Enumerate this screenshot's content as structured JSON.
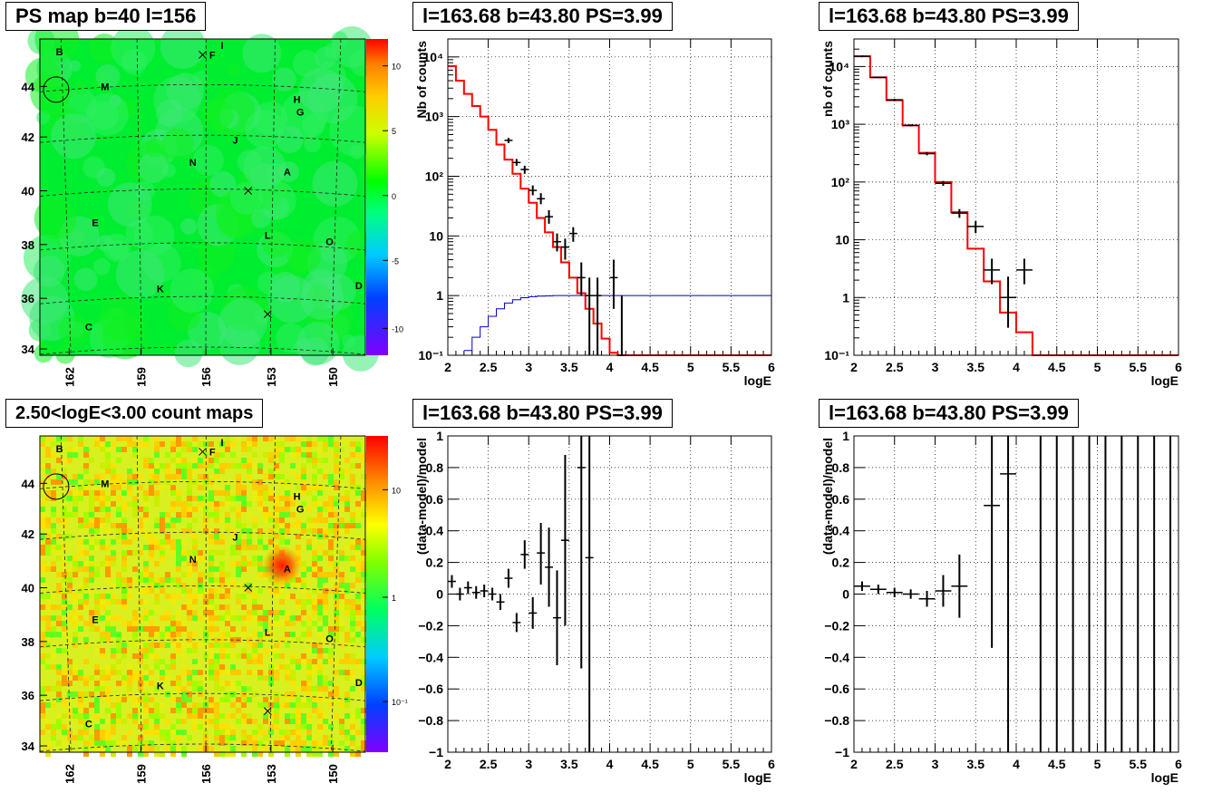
{
  "panels": {
    "map_top": {
      "title": "PS map b=40 l=156"
    },
    "map_bottom": {
      "title": "2.50<logE<3.00 count maps"
    },
    "spec_left": {
      "title": "l=163.68 b=43.80 PS=3.99"
    },
    "spec_right": {
      "title": "l=163.68 b=43.80 PS=3.99"
    },
    "res_left": {
      "title": "l=163.68 b=43.80 PS=3.99"
    },
    "res_right": {
      "title": "l=163.68 b=43.80 PS=3.99"
    }
  },
  "maps": {
    "x_ticks": [
      "162",
      "159",
      "156",
      "153",
      "150"
    ],
    "y_ticks": [
      "44",
      "42",
      "40",
      "38",
      "36",
      "34"
    ],
    "source_labels": [
      {
        "t": "B",
        "x": 0.06,
        "y": 0.04
      },
      {
        "t": "I",
        "x": 0.56,
        "y": 0.02
      },
      {
        "t": "F",
        "x": 0.53,
        "y": 0.05
      },
      {
        "t": "M",
        "x": 0.2,
        "y": 0.15
      },
      {
        "t": "H",
        "x": 0.79,
        "y": 0.19
      },
      {
        "t": "G",
        "x": 0.8,
        "y": 0.23
      },
      {
        "t": "J",
        "x": 0.6,
        "y": 0.32
      },
      {
        "t": "N",
        "x": 0.47,
        "y": 0.39
      },
      {
        "t": "A",
        "x": 0.76,
        "y": 0.42
      },
      {
        "t": "E",
        "x": 0.17,
        "y": 0.58
      },
      {
        "t": "L",
        "x": 0.7,
        "y": 0.62
      },
      {
        "t": "O",
        "x": 0.89,
        "y": 0.64
      },
      {
        "t": "K",
        "x": 0.37,
        "y": 0.79
      },
      {
        "t": "D",
        "x": 0.98,
        "y": 0.78
      },
      {
        "t": "C",
        "x": 0.15,
        "y": 0.91
      }
    ],
    "crosses": [
      {
        "x": 0.5,
        "y": 0.05
      },
      {
        "x": 0.64,
        "y": 0.48
      },
      {
        "x": 0.7,
        "y": 0.87
      }
    ],
    "circle": {
      "x": 0.05,
      "y": 0.16
    },
    "top_palette_ticks": [
      "10",
      "5",
      "0",
      "-5",
      "-10"
    ],
    "bottom_palette_ticks": [
      "10",
      "1",
      "10⁻¹"
    ]
  },
  "chart_data": [
    {
      "type": "line",
      "panel": "spec_left",
      "title": "l=163.68 b=43.80 PS=3.99",
      "xlabel": "logE",
      "ylabel": "Nb of counts",
      "xlim": [
        2,
        6
      ],
      "ylim": [
        0.1,
        20000
      ],
      "yscale": "log",
      "grid": true,
      "x_ticks": [
        "2",
        "2.5",
        "3",
        "3.5",
        "4",
        "4.5",
        "5",
        "5.5",
        "6"
      ],
      "y_ticks": [
        "10⁻¹",
        "1",
        "10",
        "10²",
        "10³",
        "10⁴"
      ],
      "model_step": {
        "color": "#ff0000",
        "edges": [
          2,
          2.1,
          2.2,
          2.3,
          2.4,
          2.5,
          2.6,
          2.7,
          2.8,
          2.9,
          3.0,
          3.1,
          3.2,
          3.3,
          3.4,
          3.5,
          3.6,
          3.7,
          3.8,
          3.9,
          4.0,
          4.1,
          6.0
        ],
        "values": [
          7000,
          4000,
          2400,
          1500,
          1000,
          600,
          340,
          190,
          110,
          62,
          36,
          20,
          11.5,
          6.5,
          3.6,
          2.0,
          1.1,
          0.6,
          0.34,
          0.19,
          0.11,
          0.1
        ]
      },
      "efficiency": {
        "color": "#0000cc",
        "edges": [
          2.2,
          2.3,
          2.4,
          2.5,
          2.6,
          2.7,
          2.8,
          2.9,
          3.0,
          3.1,
          3.2,
          3.3,
          3.4,
          3.5,
          3.6,
          3.7,
          6.0
        ],
        "values": [
          0.12,
          0.2,
          0.3,
          0.45,
          0.6,
          0.75,
          0.85,
          0.92,
          0.96,
          0.98,
          0.99,
          1,
          1,
          1,
          1,
          1
        ]
      },
      "points": [
        {
          "x": 2.75,
          "y": 400,
          "lo": 360,
          "hi": 440
        },
        {
          "x": 2.85,
          "y": 170,
          "lo": 150,
          "hi": 195
        },
        {
          "x": 2.95,
          "y": 130,
          "lo": 110,
          "hi": 150
        },
        {
          "x": 3.05,
          "y": 58,
          "lo": 48,
          "hi": 70
        },
        {
          "x": 3.15,
          "y": 42,
          "lo": 34,
          "hi": 52
        },
        {
          "x": 3.25,
          "y": 21,
          "lo": 16,
          "hi": 27
        },
        {
          "x": 3.35,
          "y": 8,
          "lo": 5.5,
          "hi": 11
        },
        {
          "x": 3.45,
          "y": 6.5,
          "lo": 4,
          "hi": 9
        },
        {
          "x": 3.55,
          "y": 11,
          "lo": 8,
          "hi": 14
        },
        {
          "x": 3.65,
          "y": 2,
          "lo": 1,
          "hi": 3.6
        },
        {
          "x": 3.75,
          "y": 1,
          "lo": 0.1,
          "hi": 2.0
        },
        {
          "x": 3.85,
          "y": 1,
          "lo": 0.1,
          "hi": 2.0
        },
        {
          "x": 4.05,
          "y": 2,
          "lo": 0.6,
          "hi": 4.0
        },
        {
          "x": 4.15,
          "y": 0.1,
          "lo": 0.1,
          "hi": 1.0
        }
      ]
    },
    {
      "type": "line",
      "panel": "spec_right",
      "title": "l=163.68 b=43.80 PS=3.99",
      "xlabel": "logE",
      "ylabel": "nb of counts",
      "xlim": [
        2,
        6
      ],
      "ylim": [
        0.1,
        30000
      ],
      "yscale": "log",
      "grid": true,
      "x_ticks": [
        "2",
        "2.5",
        "3",
        "3.5",
        "4",
        "4.5",
        "5",
        "5.5",
        "6"
      ],
      "y_ticks": [
        "10⁻¹",
        "1",
        "10",
        "10²",
        "10³",
        "10⁴"
      ],
      "model_step": {
        "color": "#ff0000",
        "edges": [
          2,
          2.2,
          2.4,
          2.6,
          2.8,
          3.0,
          3.2,
          3.4,
          3.6,
          3.8,
          4.0,
          4.2,
          6.0
        ],
        "values": [
          15000,
          6500,
          2600,
          950,
          320,
          100,
          30,
          7,
          1.9,
          0.55,
          0.25,
          0.1
        ]
      },
      "points": [
        {
          "x": 2.1,
          "y": 15000,
          "lo": 14500,
          "hi": 15500,
          "xe": 0.1
        },
        {
          "x": 2.3,
          "y": 6500,
          "lo": 6300,
          "hi": 6700,
          "xe": 0.1
        },
        {
          "x": 2.5,
          "y": 2650,
          "lo": 2550,
          "hi": 2750,
          "xe": 0.1
        },
        {
          "x": 2.7,
          "y": 960,
          "lo": 920,
          "hi": 1000,
          "xe": 0.1
        },
        {
          "x": 2.9,
          "y": 310,
          "lo": 290,
          "hi": 330,
          "xe": 0.1
        },
        {
          "x": 3.1,
          "y": 95,
          "lo": 86,
          "hi": 104,
          "xe": 0.1
        },
        {
          "x": 3.3,
          "y": 29,
          "lo": 24,
          "hi": 34,
          "xe": 0.1
        },
        {
          "x": 3.5,
          "y": 17,
          "lo": 13,
          "hi": 21,
          "xe": 0.1
        },
        {
          "x": 3.7,
          "y": 3,
          "lo": 1.7,
          "hi": 4.7,
          "xe": 0.1
        },
        {
          "x": 3.9,
          "y": 1,
          "lo": 0.3,
          "hi": 2.3,
          "xe": 0.1
        },
        {
          "x": 4.1,
          "y": 3,
          "lo": 1.7,
          "hi": 4.7,
          "xe": 0.1
        }
      ]
    },
    {
      "type": "scatter",
      "panel": "res_left",
      "title": "l=163.68 b=43.80 PS=3.99",
      "xlabel": "logE",
      "ylabel": "(data-model)/model",
      "xlim": [
        2,
        6
      ],
      "ylim": [
        -1,
        1
      ],
      "grid": true,
      "x_ticks": [
        "2",
        "2.5",
        "3",
        "3.5",
        "4",
        "4.5",
        "5",
        "5.5",
        "6"
      ],
      "y_ticks": [
        "1",
        "0.8",
        "0.6",
        "0.4",
        "0.2",
        "0",
        "-0.2",
        "-0.4",
        "-0.6",
        "-0.8",
        "-1"
      ],
      "points": [
        {
          "x": 2.05,
          "y": 0.08,
          "lo": 0.04,
          "hi": 0.12
        },
        {
          "x": 2.15,
          "y": 0.0,
          "lo": -0.04,
          "hi": 0.04
        },
        {
          "x": 2.25,
          "y": 0.04,
          "lo": 0.0,
          "hi": 0.08
        },
        {
          "x": 2.35,
          "y": 0.01,
          "lo": -0.03,
          "hi": 0.05
        },
        {
          "x": 2.45,
          "y": 0.02,
          "lo": -0.02,
          "hi": 0.06
        },
        {
          "x": 2.55,
          "y": 0.0,
          "lo": -0.04,
          "hi": 0.04
        },
        {
          "x": 2.65,
          "y": -0.05,
          "lo": -0.1,
          "hi": 0.0
        },
        {
          "x": 2.75,
          "y": 0.1,
          "lo": 0.04,
          "hi": 0.16
        },
        {
          "x": 2.85,
          "y": -0.18,
          "lo": -0.24,
          "hi": -0.12
        },
        {
          "x": 2.95,
          "y": 0.25,
          "lo": 0.16,
          "hi": 0.34
        },
        {
          "x": 3.05,
          "y": -0.12,
          "lo": -0.22,
          "hi": -0.02
        },
        {
          "x": 3.15,
          "y": 0.26,
          "lo": 0.06,
          "hi": 0.45
        },
        {
          "x": 3.25,
          "y": 0.17,
          "lo": -0.08,
          "hi": 0.42
        },
        {
          "x": 3.35,
          "y": -0.15,
          "lo": -0.45,
          "hi": 0.15
        },
        {
          "x": 3.45,
          "y": 0.34,
          "lo": -0.2,
          "hi": 0.88
        },
        {
          "x": 3.65,
          "y": 0.8,
          "lo": -0.47,
          "hi": 1.0
        },
        {
          "x": 3.75,
          "y": 0.23,
          "lo": -1.0,
          "hi": 1.0
        }
      ]
    },
    {
      "type": "scatter",
      "panel": "res_right",
      "title": "l=163.68 b=43.80 PS=3.99",
      "xlabel": "logE",
      "ylabel": "(data-model)/model",
      "xlim": [
        2,
        6
      ],
      "ylim": [
        -1,
        1
      ],
      "grid": true,
      "x_ticks": [
        "2",
        "2.5",
        "3",
        "3.5",
        "4",
        "4.5",
        "5",
        "5.5",
        "6"
      ],
      "y_ticks": [
        "1",
        "0.8",
        "0.6",
        "0.4",
        "0.2",
        "0",
        "-0.2",
        "-0.4",
        "-0.6",
        "-0.8",
        "-1"
      ],
      "points": [
        {
          "x": 2.1,
          "y": 0.05,
          "lo": 0.02,
          "hi": 0.08,
          "xe": 0.1
        },
        {
          "x": 2.3,
          "y": 0.03,
          "lo": 0.0,
          "hi": 0.06,
          "xe": 0.1
        },
        {
          "x": 2.5,
          "y": 0.01,
          "lo": -0.02,
          "hi": 0.04,
          "xe": 0.1
        },
        {
          "x": 2.7,
          "y": 0.0,
          "lo": -0.03,
          "hi": 0.03,
          "xe": 0.1
        },
        {
          "x": 2.9,
          "y": -0.03,
          "lo": -0.08,
          "hi": 0.02,
          "xe": 0.1
        },
        {
          "x": 3.1,
          "y": 0.02,
          "lo": -0.08,
          "hi": 0.12,
          "xe": 0.1
        },
        {
          "x": 3.3,
          "y": 0.05,
          "lo": -0.15,
          "hi": 0.25,
          "xe": 0.1
        },
        {
          "x": 3.7,
          "y": 0.56,
          "lo": -0.34,
          "hi": 1.0,
          "xe": 0.1
        },
        {
          "x": 3.9,
          "y": 0.76,
          "lo": -1.0,
          "hi": 1.0,
          "xe": 0.1
        },
        {
          "x": 4.3,
          "y": -1.0,
          "lo": -1.0,
          "hi": 1.0,
          "xe": 0
        },
        {
          "x": 4.5,
          "y": -1.0,
          "lo": -1.0,
          "hi": 1.0,
          "xe": 0
        },
        {
          "x": 4.7,
          "y": -1.0,
          "lo": -1.0,
          "hi": 1.0,
          "xe": 0
        },
        {
          "x": 4.9,
          "y": -1.0,
          "lo": -1.0,
          "hi": 1.0,
          "xe": 0
        },
        {
          "x": 5.1,
          "y": -1.0,
          "lo": -1.0,
          "hi": 1.0,
          "xe": 0
        },
        {
          "x": 5.3,
          "y": -1.0,
          "lo": -1.0,
          "hi": 1.0,
          "xe": 0
        },
        {
          "x": 5.5,
          "y": -1.0,
          "lo": -1.0,
          "hi": 1.0,
          "xe": 0
        },
        {
          "x": 5.7,
          "y": -1.0,
          "lo": -1.0,
          "hi": 1.0,
          "xe": 0
        },
        {
          "x": 5.9,
          "y": -1.0,
          "lo": -1.0,
          "hi": 1.0,
          "xe": 0
        }
      ]
    }
  ]
}
